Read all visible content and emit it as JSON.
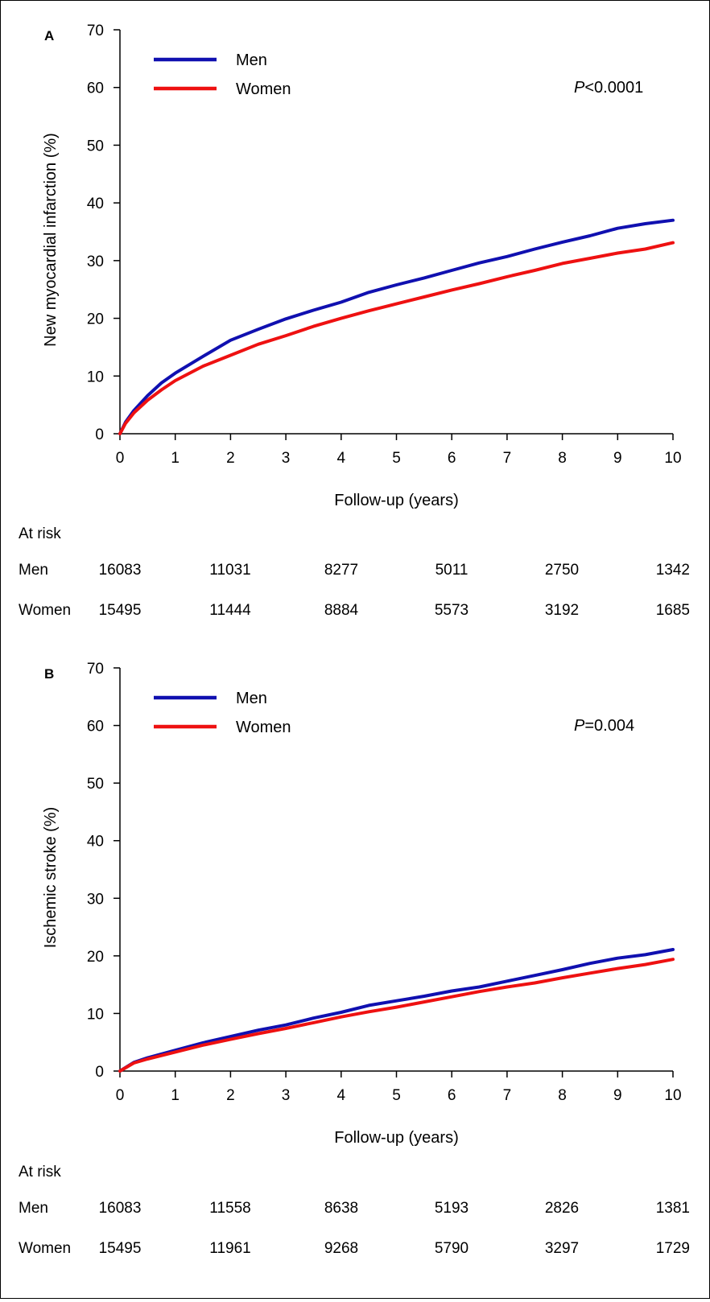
{
  "colors": {
    "men": "#1010b0",
    "women": "#ee1111"
  },
  "chart_data": [
    {
      "type": "line",
      "panel_label": "A",
      "ylabel": "New myocardial infarction (%)",
      "xlabel": "Follow-up (years)",
      "xlim": [
        0,
        10
      ],
      "ylim": [
        0,
        70
      ],
      "xticks": [
        0,
        1,
        2,
        3,
        4,
        5,
        6,
        7,
        8,
        9,
        10
      ],
      "yticks": [
        0,
        10,
        20,
        30,
        40,
        50,
        60,
        70
      ],
      "grid": false,
      "legend_position": "top-left",
      "annotation": {
        "italic": "P",
        "rest": "<0.0001"
      },
      "series": [
        {
          "name": "Men",
          "color_key": "men",
          "x": [
            0,
            0.1,
            0.25,
            0.5,
            0.75,
            1,
            1.5,
            2,
            2.5,
            3,
            3.5,
            4,
            4.5,
            5,
            5.5,
            6,
            6.5,
            7,
            7.5,
            8,
            8.5,
            9,
            9.5,
            10
          ],
          "y": [
            0,
            2,
            4,
            6.6,
            8.8,
            10.5,
            13.4,
            16.2,
            18.1,
            19.9,
            21.4,
            22.8,
            24.5,
            25.8,
            27.0,
            28.3,
            29.6,
            30.7,
            32.0,
            33.2,
            34.3,
            35.6,
            36.4,
            37.0
          ]
        },
        {
          "name": "Women",
          "color_key": "women",
          "x": [
            0,
            0.1,
            0.25,
            0.5,
            0.75,
            1,
            1.5,
            2,
            2.5,
            3,
            3.5,
            4,
            4.5,
            5,
            5.5,
            6,
            6.5,
            7,
            7.5,
            8,
            8.5,
            9,
            9.5,
            10
          ],
          "y": [
            0,
            1.8,
            3.6,
            5.8,
            7.6,
            9.2,
            11.7,
            13.6,
            15.5,
            17.0,
            18.6,
            20.0,
            21.3,
            22.5,
            23.7,
            24.9,
            26.0,
            27.2,
            28.3,
            29.5,
            30.4,
            31.3,
            32.0,
            33.1
          ]
        }
      ],
      "at_risk": {
        "title": "At risk",
        "rows": [
          {
            "label": "Men",
            "values": [
              "16083",
              "11031",
              "8277",
              "5011",
              "2750",
              "1342"
            ]
          },
          {
            "label": "Women",
            "values": [
              "15495",
              "11444",
              "8884",
              "5573",
              "3192",
              "1685"
            ]
          }
        ]
      }
    },
    {
      "type": "line",
      "panel_label": "B",
      "ylabel": "Ischemic stroke (%)",
      "xlabel": "Follow-up (years)",
      "xlim": [
        0,
        10
      ],
      "ylim": [
        0,
        70
      ],
      "xticks": [
        0,
        1,
        2,
        3,
        4,
        5,
        6,
        7,
        8,
        9,
        10
      ],
      "yticks": [
        0,
        10,
        20,
        30,
        40,
        50,
        60,
        70
      ],
      "grid": false,
      "legend_position": "top-left",
      "annotation": {
        "italic": "P",
        "rest": "=0.004"
      },
      "series": [
        {
          "name": "Men",
          "color_key": "men",
          "x": [
            0,
            0.25,
            0.5,
            1,
            1.5,
            2,
            2.5,
            3,
            3.5,
            4,
            4.5,
            5,
            5.5,
            6,
            6.5,
            7,
            7.5,
            8,
            8.5,
            9,
            9.5,
            10
          ],
          "y": [
            0,
            1.5,
            2.3,
            3.6,
            4.9,
            6.0,
            7.1,
            8.0,
            9.2,
            10.2,
            11.4,
            12.2,
            13.0,
            13.9,
            14.6,
            15.6,
            16.6,
            17.6,
            18.7,
            19.6,
            20.2,
            21.1
          ]
        },
        {
          "name": "Women",
          "color_key": "women",
          "x": [
            0,
            0.25,
            0.5,
            1,
            1.5,
            2,
            2.5,
            3,
            3.5,
            4,
            4.5,
            5,
            5.5,
            6,
            6.5,
            7,
            7.5,
            8,
            8.5,
            9,
            9.5,
            10
          ],
          "y": [
            0,
            1.4,
            2.1,
            3.3,
            4.5,
            5.5,
            6.5,
            7.4,
            8.4,
            9.4,
            10.3,
            11.1,
            12.0,
            12.9,
            13.8,
            14.6,
            15.3,
            16.2,
            17.0,
            17.8,
            18.5,
            19.4
          ]
        }
      ],
      "at_risk": {
        "title": "At risk",
        "rows": [
          {
            "label": "Men",
            "values": [
              "16083",
              "11558",
              "8638",
              "5193",
              "2826",
              "1381"
            ]
          },
          {
            "label": "Women",
            "values": [
              "15495",
              "11961",
              "9268",
              "5790",
              "3297",
              "1729"
            ]
          }
        ]
      }
    }
  ]
}
